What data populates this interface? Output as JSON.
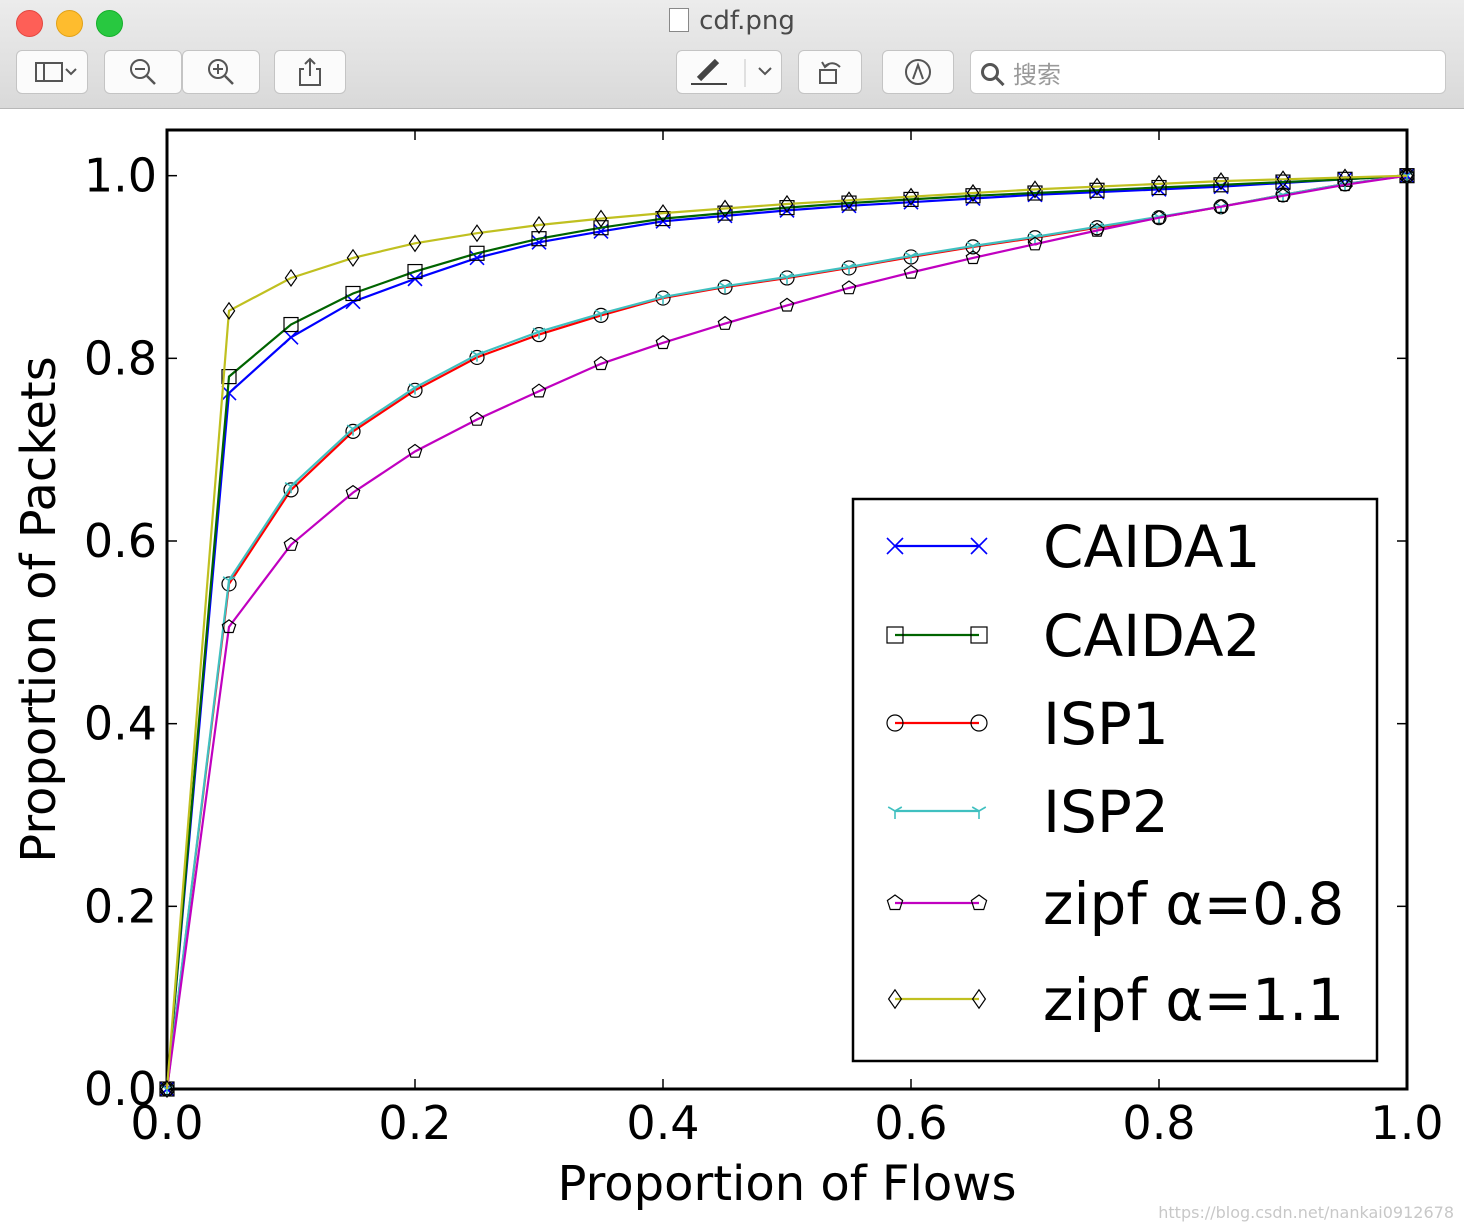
{
  "window": {
    "title": "cdf.png"
  },
  "toolbar": {
    "search_placeholder": "搜索",
    "buttons": [
      "sidebar-toggle",
      "zoom-out",
      "zoom-in",
      "share",
      "markup",
      "rotate",
      "annotate"
    ]
  },
  "watermark": "https://blog.csdn.net/nankai0912678",
  "chart_data": {
    "type": "line",
    "title": "",
    "xlabel": "Proportion of Flows",
    "ylabel": "Proportion of Packets",
    "xlim": [
      0.0,
      1.0
    ],
    "ylim": [
      0.0,
      1.05
    ],
    "xticks": [
      "0.0",
      "0.2",
      "0.4",
      "0.6",
      "0.8",
      "1.0"
    ],
    "yticks": [
      "0.0",
      "0.2",
      "0.4",
      "0.6",
      "0.8",
      "1.0"
    ],
    "legend_position": "lower-right",
    "x": [
      0.0,
      0.05,
      0.1,
      0.15,
      0.2,
      0.25,
      0.3,
      0.35,
      0.4,
      0.45,
      0.5,
      0.55,
      0.6,
      0.65,
      0.7,
      0.75,
      0.8,
      0.85,
      0.9,
      0.95,
      1.0
    ],
    "series": [
      {
        "name": "CAIDA1",
        "color": "#0000ff",
        "marker": "x",
        "values": [
          0.0,
          0.762,
          0.823,
          0.862,
          0.887,
          0.91,
          0.927,
          0.939,
          0.95,
          0.956,
          0.962,
          0.967,
          0.971,
          0.975,
          0.979,
          0.982,
          0.985,
          0.988,
          0.992,
          0.996,
          1.0
        ]
      },
      {
        "name": "CAIDA2",
        "color": "#006400",
        "marker": "square",
        "values": [
          0.0,
          0.78,
          0.837,
          0.871,
          0.895,
          0.915,
          0.931,
          0.943,
          0.953,
          0.959,
          0.965,
          0.97,
          0.974,
          0.978,
          0.981,
          0.984,
          0.987,
          0.99,
          0.993,
          0.996,
          1.0
        ]
      },
      {
        "name": "ISP1",
        "color": "#ff0000",
        "marker": "circle",
        "values": [
          0.0,
          0.553,
          0.656,
          0.72,
          0.765,
          0.801,
          0.826,
          0.847,
          0.866,
          0.878,
          0.888,
          0.899,
          0.911,
          0.922,
          0.932,
          0.943,
          0.954,
          0.966,
          0.979,
          0.991,
          1.0
        ]
      },
      {
        "name": "ISP2",
        "color": "#40c0c0",
        "marker": "tri",
        "values": [
          0.0,
          0.557,
          0.66,
          0.723,
          0.768,
          0.804,
          0.829,
          0.849,
          0.867,
          0.879,
          0.889,
          0.9,
          0.912,
          0.923,
          0.933,
          0.944,
          0.955,
          0.966,
          0.979,
          0.991,
          1.0
        ]
      },
      {
        "name": "zipf α=0.8",
        "color": "#c000c0",
        "marker": "pentagon",
        "values": [
          0.0,
          0.506,
          0.596,
          0.653,
          0.698,
          0.733,
          0.764,
          0.794,
          0.817,
          0.838,
          0.858,
          0.877,
          0.894,
          0.91,
          0.925,
          0.94,
          0.954,
          0.966,
          0.978,
          0.99,
          1.0
        ]
      },
      {
        "name": "zipf α=1.1",
        "color": "#c0c020",
        "marker": "diamond",
        "values": [
          0.0,
          0.852,
          0.888,
          0.91,
          0.926,
          0.937,
          0.946,
          0.953,
          0.959,
          0.964,
          0.969,
          0.973,
          0.977,
          0.981,
          0.985,
          0.988,
          0.991,
          0.994,
          0.996,
          0.998,
          1.0
        ]
      }
    ]
  }
}
